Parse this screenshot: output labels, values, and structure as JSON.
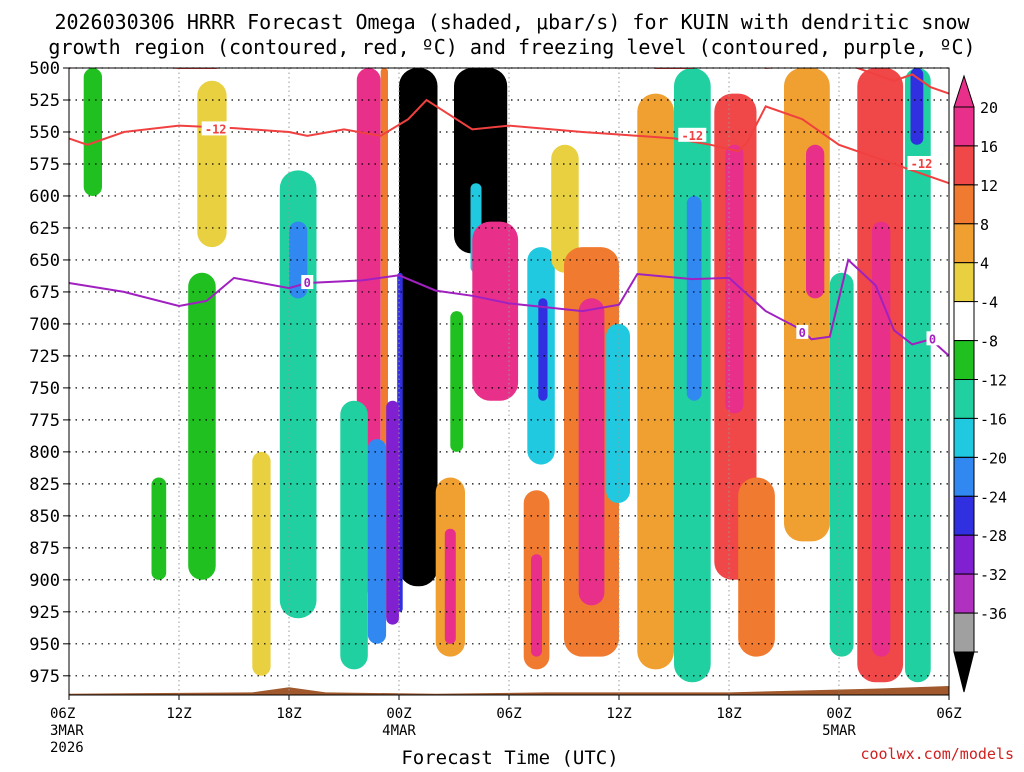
{
  "title": {
    "line1": "2026030306 HRRR Forecast Omega (shaded, μbar/s) for KUIN with dendritic snow",
    "line2": "growth region (contoured, red, ºC) and freezing level (contoured, purple, ºC)"
  },
  "xlabel": "Forecast Time (UTC)",
  "credit": "coolwx.com/models",
  "chart_data": {
    "type": "heatmap",
    "title": "2026030306 HRRR Forecast Omega (shaded, μbar/s) for KUIN with dendritic snow growth region (contoured, red, ºC) and freezing level (contoured, purple, ºC)",
    "xlabel": "Forecast Time (UTC)",
    "ylabel": "Pressure (hPa)",
    "xlim": [
      0,
      48
    ],
    "ylim": [
      990,
      500
    ],
    "y_ticks": [
      500,
      525,
      550,
      575,
      600,
      625,
      650,
      675,
      700,
      725,
      750,
      775,
      800,
      825,
      850,
      875,
      900,
      925,
      950,
      975
    ],
    "x_ticks": [
      {
        "hour": 0,
        "label": "06Z",
        "date": "3MAR",
        "year": "2026"
      },
      {
        "hour": 6,
        "label": "12Z",
        "date": "",
        "year": ""
      },
      {
        "hour": 12,
        "label": "18Z",
        "date": "",
        "year": ""
      },
      {
        "hour": 18,
        "label": "00Z",
        "date": "4MAR",
        "year": ""
      },
      {
        "hour": 24,
        "label": "06Z",
        "date": "",
        "year": ""
      },
      {
        "hour": 30,
        "label": "12Z",
        "date": "",
        "year": ""
      },
      {
        "hour": 36,
        "label": "18Z",
        "date": "",
        "year": ""
      },
      {
        "hour": 42,
        "label": "00Z",
        "date": "5MAR",
        "year": ""
      },
      {
        "hour": 48,
        "label": "06Z",
        "date": "",
        "year": ""
      }
    ],
    "grid": true,
    "colorbar": {
      "labels": [
        "20",
        "16",
        "12",
        "8",
        "4",
        "-4",
        "-8",
        "-12",
        "-16",
        "-20",
        "-24",
        "-28",
        "-32",
        "-36"
      ],
      "bands": [
        {
          "from": 20,
          "to": 24,
          "color": "#e8308a"
        },
        {
          "from": 16,
          "to": 20,
          "color": "#f04848"
        },
        {
          "from": 12,
          "to": 16,
          "color": "#f07a30"
        },
        {
          "from": 8,
          "to": 12,
          "color": "#f0a030"
        },
        {
          "from": 4,
          "to": 8,
          "color": "#e8d040"
        },
        {
          "from": -4,
          "to": 4,
          "color": "#ffffff"
        },
        {
          "from": -8,
          "to": -4,
          "color": "#20c020"
        },
        {
          "from": -12,
          "to": -8,
          "color": "#20d0a0"
        },
        {
          "from": -16,
          "to": -12,
          "color": "#20c8e0"
        },
        {
          "from": -20,
          "to": -16,
          "color": "#3088f0"
        },
        {
          "from": -24,
          "to": -20,
          "color": "#3030e0"
        },
        {
          "from": -28,
          "to": -24,
          "color": "#8020d0"
        },
        {
          "from": -32,
          "to": -28,
          "color": "#b030c0"
        },
        {
          "from": -36,
          "to": -32,
          "color": "#a0a0a0"
        }
      ],
      "over_color": "#e8308a",
      "under_color": "#000000"
    },
    "cells": [
      {
        "t0": 15.7,
        "t1": 17.0,
        "p0": 500,
        "p1": 910,
        "v": 24
      },
      {
        "t0": 17.0,
        "t1": 17.4,
        "p0": 500,
        "p1": 930,
        "v": 12
      },
      {
        "t0": 18.0,
        "t1": 20.1,
        "p0": 500,
        "p1": 905,
        "v": -40
      },
      {
        "t0": 17.9,
        "t1": 18.2,
        "p0": 660,
        "p1": 925,
        "v": -22
      },
      {
        "t0": 17.3,
        "t1": 18.0,
        "p0": 760,
        "p1": 935,
        "v": -28
      },
      {
        "t0": 16.3,
        "t1": 17.3,
        "p0": 790,
        "p1": 950,
        "v": -18
      },
      {
        "t0": 14.8,
        "t1": 16.3,
        "p0": 760,
        "p1": 970,
        "v": -10
      },
      {
        "t0": 20.0,
        "t1": 21.6,
        "p0": 820,
        "p1": 960,
        "v": 10
      },
      {
        "t0": 20.5,
        "t1": 21.1,
        "p0": 860,
        "p1": 950,
        "v": 22
      },
      {
        "t0": 21.0,
        "t1": 23.9,
        "p0": 500,
        "p1": 645,
        "v": -40
      },
      {
        "t0": 21.9,
        "t1": 22.5,
        "p0": 590,
        "p1": 660,
        "v": -16
      },
      {
        "t0": 20.8,
        "t1": 21.5,
        "p0": 690,
        "p1": 800,
        "v": -8
      },
      {
        "t0": 22.0,
        "t1": 24.5,
        "p0": 620,
        "p1": 760,
        "v": 20
      },
      {
        "t0": 22.5,
        "t1": 23.3,
        "p0": 650,
        "p1": 740,
        "v": 24
      },
      {
        "t0": 25.0,
        "t1": 26.5,
        "p0": 640,
        "p1": 810,
        "v": -14
      },
      {
        "t0": 25.6,
        "t1": 26.1,
        "p0": 680,
        "p1": 760,
        "v": -24
      },
      {
        "t0": 24.8,
        "t1": 26.2,
        "p0": 830,
        "p1": 970,
        "v": 12
      },
      {
        "t0": 25.2,
        "t1": 25.8,
        "p0": 880,
        "p1": 960,
        "v": 24
      },
      {
        "t0": 26.3,
        "t1": 27.8,
        "p0": 560,
        "p1": 660,
        "v": 6
      },
      {
        "t0": 27.0,
        "t1": 30.0,
        "p0": 640,
        "p1": 960,
        "v": 12
      },
      {
        "t0": 27.8,
        "t1": 29.2,
        "p0": 680,
        "p1": 920,
        "v": 24
      },
      {
        "t0": 29.3,
        "t1": 30.6,
        "p0": 700,
        "p1": 840,
        "v": -14
      },
      {
        "t0": 31.0,
        "t1": 33.0,
        "p0": 520,
        "p1": 970,
        "v": 8
      },
      {
        "t0": 33.0,
        "t1": 35.0,
        "p0": 500,
        "p1": 980,
        "v": -10
      },
      {
        "t0": 33.7,
        "t1": 34.5,
        "p0": 600,
        "p1": 760,
        "v": -18
      },
      {
        "t0": 35.2,
        "t1": 37.5,
        "p0": 520,
        "p1": 900,
        "v": 16
      },
      {
        "t0": 35.8,
        "t1": 36.8,
        "p0": 560,
        "p1": 770,
        "v": 24
      },
      {
        "t0": 36.5,
        "t1": 38.5,
        "p0": 820,
        "p1": 960,
        "v": 14
      },
      {
        "t0": 39.0,
        "t1": 41.5,
        "p0": 500,
        "p1": 870,
        "v": 10
      },
      {
        "t0": 40.2,
        "t1": 41.2,
        "p0": 560,
        "p1": 680,
        "v": 20
      },
      {
        "t0": 41.5,
        "t1": 42.8,
        "p0": 660,
        "p1": 960,
        "v": -12
      },
      {
        "t0": 43.0,
        "t1": 45.5,
        "p0": 500,
        "p1": 980,
        "v": 16
      },
      {
        "t0": 43.8,
        "t1": 44.8,
        "p0": 620,
        "p1": 960,
        "v": 24
      },
      {
        "t0": 45.6,
        "t1": 47.0,
        "p0": 500,
        "p1": 980,
        "v": -10
      },
      {
        "t0": 45.9,
        "t1": 46.6,
        "p0": 500,
        "p1": 560,
        "v": -22
      },
      {
        "t0": 7.0,
        "t1": 8.6,
        "p0": 510,
        "p1": 640,
        "v": 6
      },
      {
        "t0": 11.5,
        "t1": 13.5,
        "p0": 580,
        "p1": 930,
        "v": -10
      },
      {
        "t0": 12.0,
        "t1": 13.0,
        "p0": 620,
        "p1": 680,
        "v": -18
      },
      {
        "t0": 6.5,
        "t1": 8.0,
        "p0": 660,
        "p1": 900,
        "v": -8
      },
      {
        "t0": 0.8,
        "t1": 1.8,
        "p0": 500,
        "p1": 600,
        "v": -6
      },
      {
        "t0": 10.0,
        "t1": 11.0,
        "p0": 800,
        "p1": 975,
        "v": 6
      },
      {
        "t0": 4.5,
        "t1": 5.3,
        "p0": 820,
        "p1": 900,
        "v": -6
      }
    ],
    "freezing_level_0C": {
      "t": [
        0,
        3,
        6,
        7.5,
        9,
        12,
        13,
        16,
        18,
        20,
        22,
        24,
        28,
        30,
        31,
        34,
        36,
        38,
        40,
        40.5,
        41.5,
        42.5,
        44,
        45,
        46,
        47,
        48
      ],
      "p": [
        668,
        675,
        686,
        682,
        664,
        672,
        668,
        666,
        662,
        674,
        678,
        684,
        690,
        685,
        661,
        665,
        664,
        690,
        705,
        712,
        710,
        650,
        670,
        705,
        716,
        712,
        725
      ]
    },
    "dgz_minus12C": {
      "t": [
        0,
        1,
        3,
        6,
        9,
        12,
        13,
        15,
        17,
        18.5,
        19.5,
        22,
        24,
        28,
        30,
        33,
        35,
        36.5,
        37,
        38,
        40,
        42,
        44,
        46,
        48
      ],
      "p": [
        555,
        560,
        550,
        545,
        547,
        550,
        553,
        548,
        553,
        540,
        525,
        548,
        545,
        550,
        552,
        555,
        560,
        565,
        558,
        530,
        540,
        560,
        570,
        580,
        590
      ]
    },
    "top_minus12C": {
      "t": [
        0,
        1.5,
        3,
        6,
        8,
        10,
        12,
        14,
        16,
        30,
        31,
        32,
        34,
        35,
        36,
        38,
        40,
        42,
        43,
        44,
        45,
        46,
        47,
        48
      ],
      "p": [
        500,
        495,
        497,
        500,
        500,
        495,
        490,
        495,
        490,
        490,
        495,
        500,
        500,
        488,
        485,
        500,
        498,
        490,
        500,
        505,
        510,
        505,
        515,
        520
      ]
    },
    "contour_labels": [
      {
        "text": "-12",
        "t": 8.0,
        "p": 548,
        "color": "#f04040"
      },
      {
        "text": "-12",
        "t": 34.0,
        "p": 553,
        "color": "#f04040"
      },
      {
        "text": "-12",
        "t": 46.5,
        "p": 575,
        "color": "#f04040"
      },
      {
        "text": "0",
        "t": 13.0,
        "p": 668,
        "color": "#a020c0"
      },
      {
        "text": "0",
        "t": 40.0,
        "p": 707,
        "color": "#a020c0"
      },
      {
        "text": "0",
        "t": 47.1,
        "p": 712,
        "color": "#a020c0"
      }
    ],
    "terrain": {
      "t": [
        0,
        10,
        12,
        14,
        20,
        26,
        36,
        44,
        48
      ],
      "p": [
        989,
        988,
        984,
        988,
        989,
        988,
        988,
        985,
        983
      ]
    }
  },
  "colors": {
    "dgz_line": "#f04040",
    "freezing_line": "#a020c0",
    "terrain": "#a0582c",
    "credit": "#d02020"
  }
}
